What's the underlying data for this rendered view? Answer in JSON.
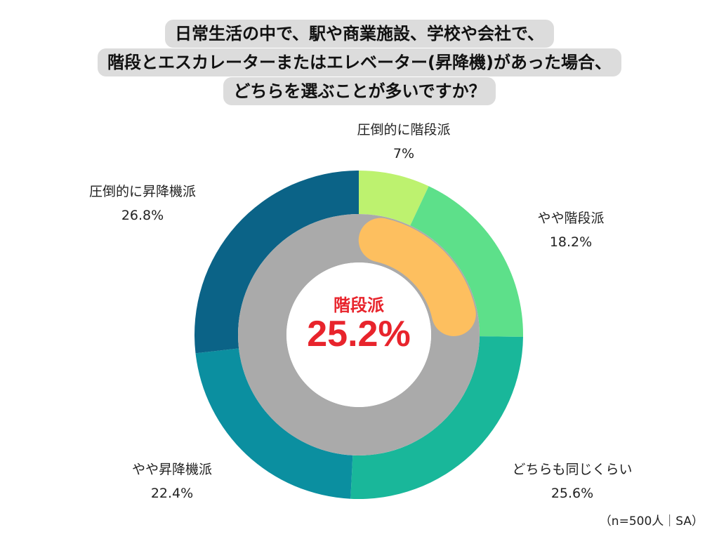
{
  "title": {
    "lines": [
      "日常生活の中で、駅や商業施設、学校や会社で、",
      "階段とエスカレーターまたはエレベーター(昇降機)があった場合、",
      "どちらを選ぶことが多いですか？"
    ]
  },
  "chart_data": {
    "type": "pie",
    "subtype": "donut",
    "categories": [
      "圧倒的に階段派",
      "やや階段派",
      "どちらも同じくらい",
      "やや昇降機派",
      "圧倒的に昇降機派"
    ],
    "values": [
      7,
      18.2,
      25.6,
      22.4,
      26.8
    ],
    "value_labels": [
      "7%",
      "18.2%",
      "25.6%",
      "22.4%",
      "26.8%"
    ],
    "colors": [
      "#bdf26f",
      "#5de08a",
      "#19b79a",
      "#0b8fa0",
      "#0b6387"
    ],
    "inner_ring": {
      "label": "階段派",
      "value": 25.2,
      "value_label": "25.2%",
      "color": "#fdbf5f",
      "track_color": "#aaaaaa"
    }
  },
  "note": "（n=500人｜SA）"
}
